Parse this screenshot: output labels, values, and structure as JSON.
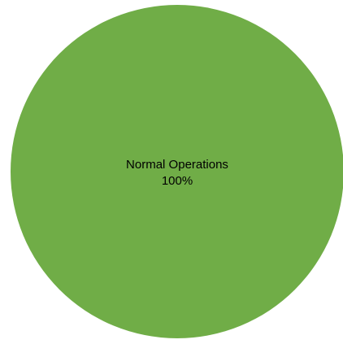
{
  "chart_data": {
    "type": "pie",
    "title": "",
    "slices": [
      {
        "label": "Normal Operations",
        "value": 100,
        "display_value": "100%",
        "color": "#70ad47"
      }
    ],
    "legend": "none",
    "data_labels": "inside"
  }
}
